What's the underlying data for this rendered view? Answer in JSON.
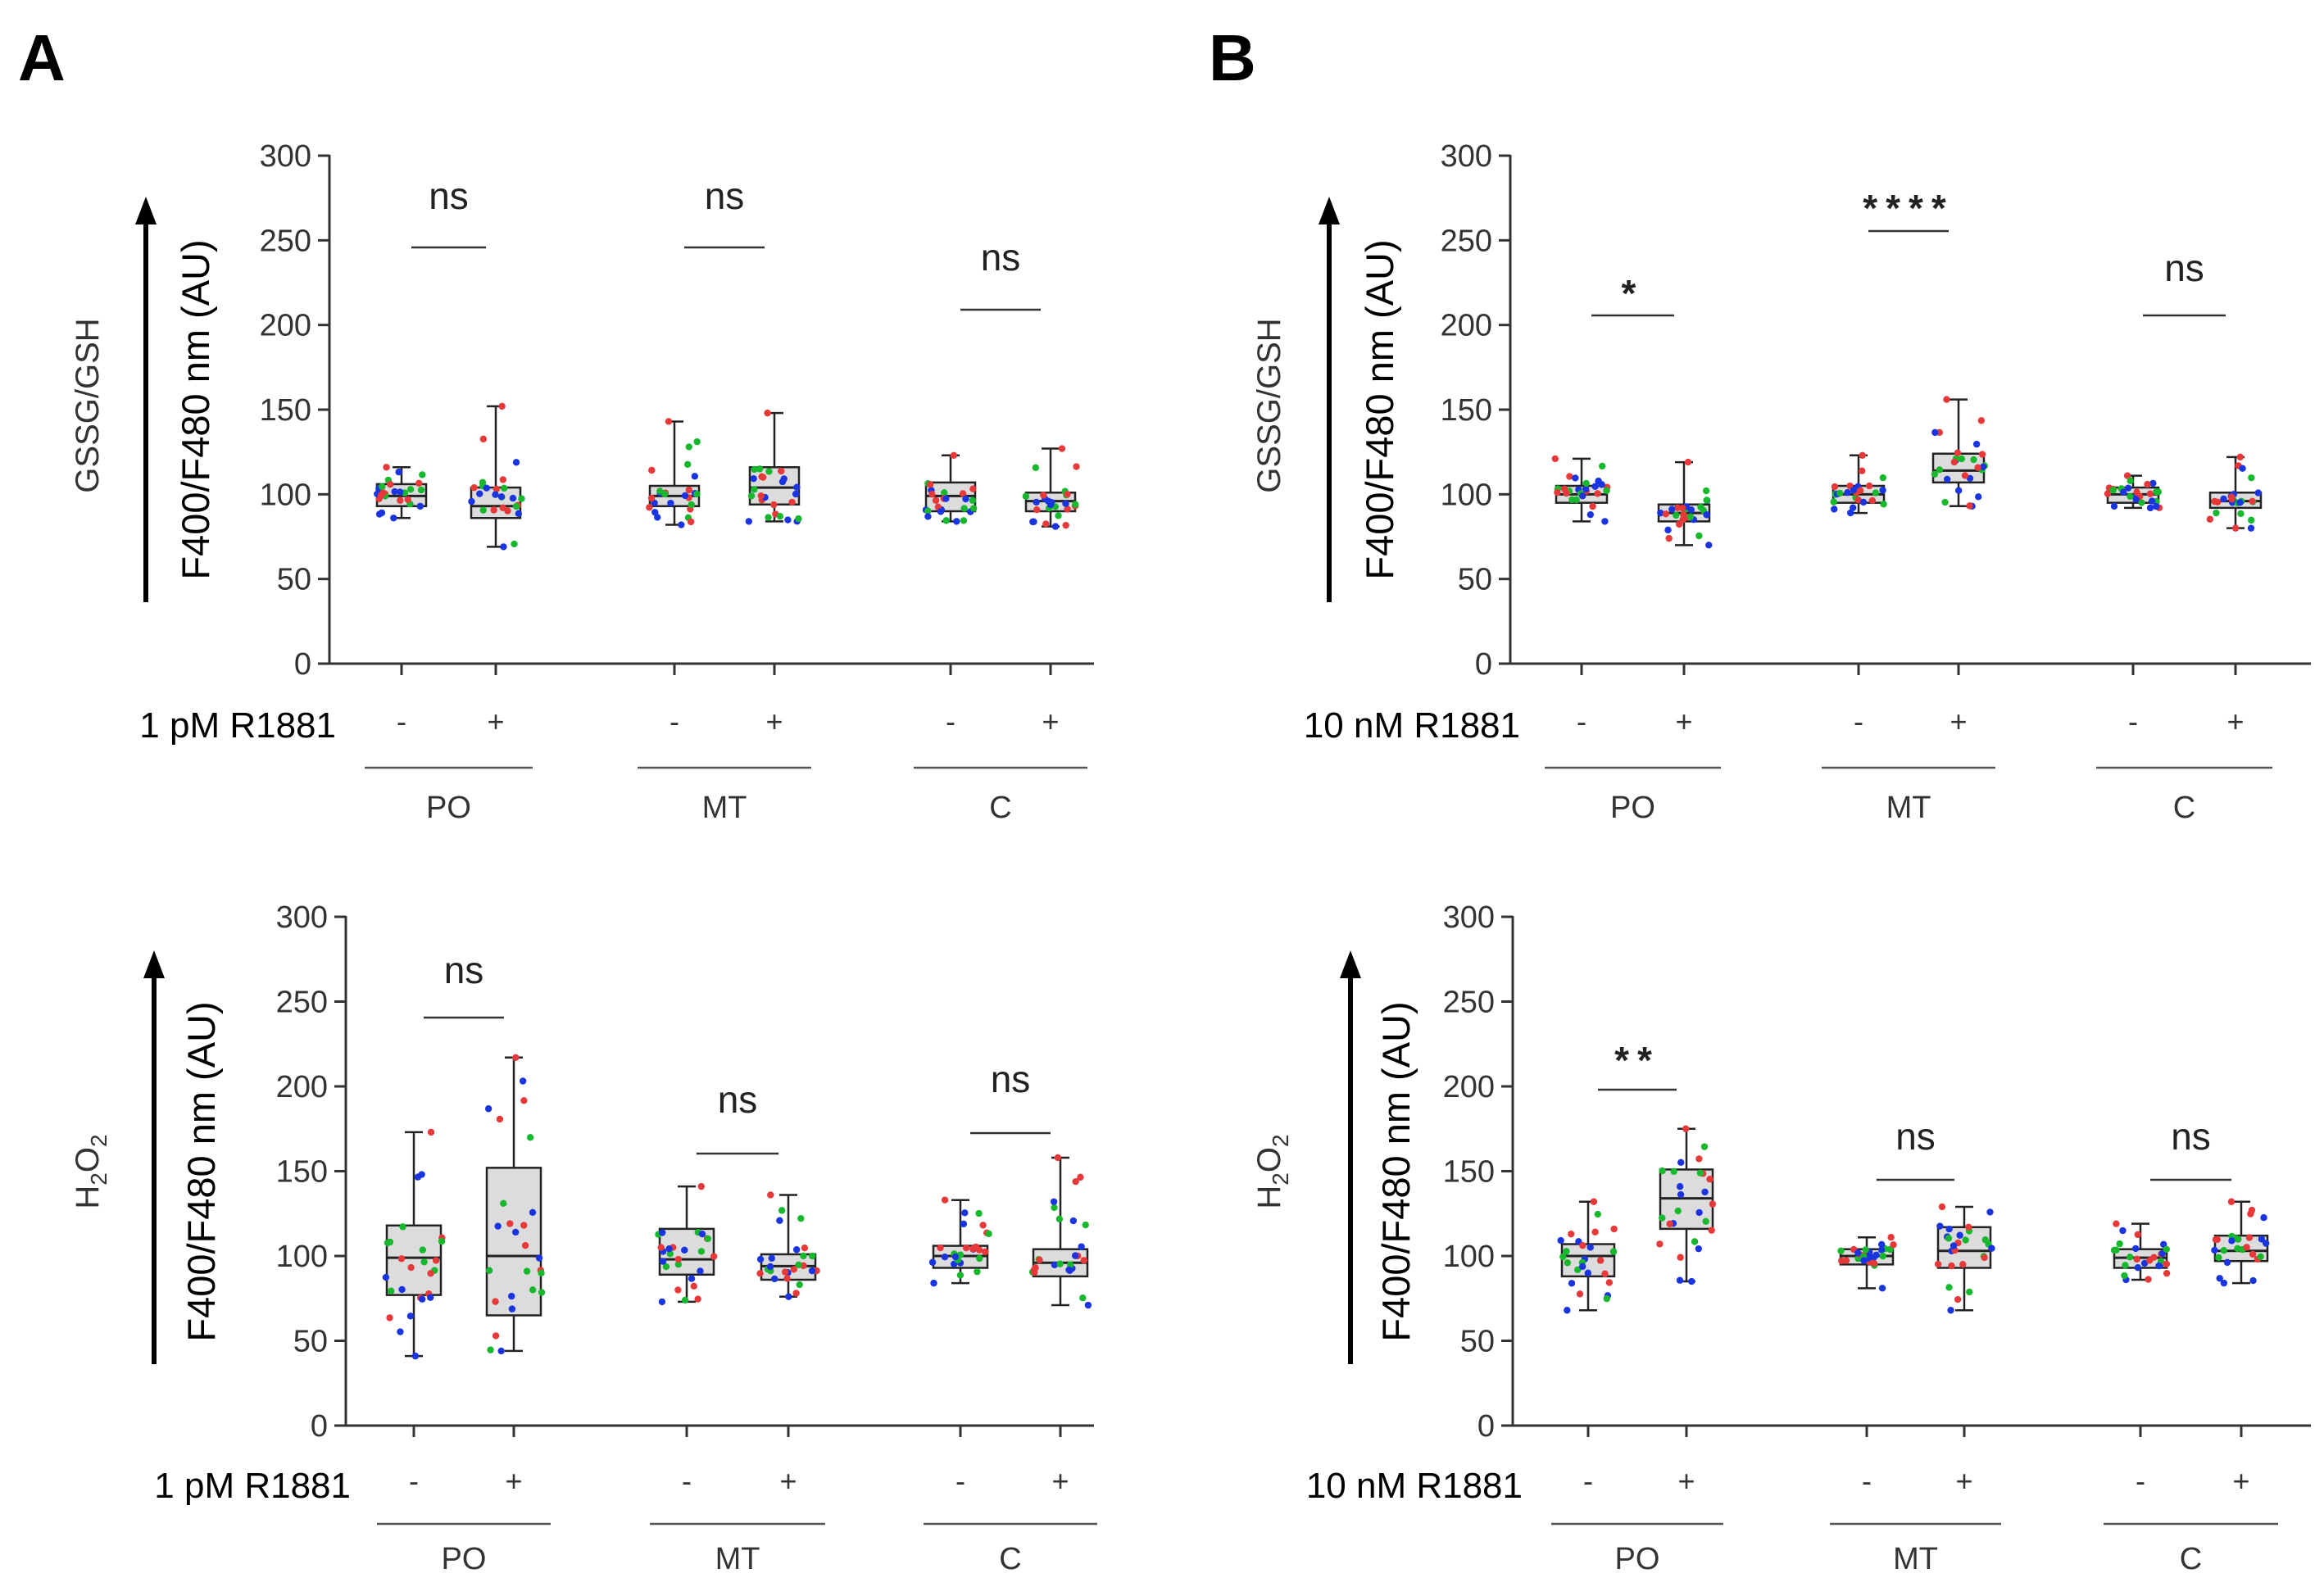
{
  "figure": {
    "panel_letters": [
      "A",
      "B"
    ]
  },
  "chart_data": [
    {
      "id": "A-top",
      "type": "box",
      "panel": "A",
      "ylabel": "F400/F480 nm (AU)",
      "side_label": "GSSG/GSH",
      "ylim": [
        0,
        300
      ],
      "yticks": [
        0,
        50,
        100,
        150,
        200,
        250,
        300
      ],
      "treatment_label": "1 pM R1881",
      "signs": [
        "-",
        "+"
      ],
      "groups": [
        {
          "name": "PO",
          "boxes": [
            {
              "min": 86,
              "q1": 93,
              "median": 99,
              "q3": 106,
              "max": 116
            },
            {
              "min": 69,
              "q1": 86,
              "median": 93,
              "q3": 104,
              "max": 152
            }
          ],
          "sig": "ns"
        },
        {
          "name": "MT",
          "boxes": [
            {
              "min": 82,
              "q1": 93,
              "median": 99,
              "q3": 105,
              "max": 143
            },
            {
              "min": 84,
              "q1": 94,
              "median": 104,
              "q3": 116,
              "max": 148
            }
          ],
          "sig": "ns"
        },
        {
          "name": "C",
          "boxes": [
            {
              "min": 84,
              "q1": 90,
              "median": 99,
              "q3": 107,
              "max": 123
            },
            {
              "min": 81,
              "q1": 90,
              "median": 96,
              "q3": 101,
              "max": 127
            }
          ],
          "sig": "ns"
        }
      ]
    },
    {
      "id": "B-top",
      "type": "box",
      "panel": "B",
      "ylabel": "F400/F480 nm (AU)",
      "side_label": "GSSG/GSH",
      "ylim": [
        0,
        300
      ],
      "yticks": [
        0,
        50,
        100,
        150,
        200,
        250,
        300
      ],
      "treatment_label": "10 nM R1881",
      "signs": [
        "-",
        "+"
      ],
      "groups": [
        {
          "name": "PO",
          "boxes": [
            {
              "min": 84,
              "q1": 95,
              "median": 100,
              "q3": 105,
              "max": 121
            },
            {
              "min": 70,
              "q1": 84,
              "median": 89,
              "q3": 94,
              "max": 119
            }
          ],
          "sig": "*"
        },
        {
          "name": "MT",
          "boxes": [
            {
              "min": 89,
              "q1": 95,
              "median": 100,
              "q3": 105,
              "max": 123
            },
            {
              "min": 93,
              "q1": 107,
              "median": 114,
              "q3": 124,
              "max": 156
            }
          ],
          "sig": "****"
        },
        {
          "name": "C",
          "boxes": [
            {
              "min": 92,
              "q1": 95,
              "median": 100,
              "q3": 104,
              "max": 111
            },
            {
              "min": 80,
              "q1": 92,
              "median": 96,
              "q3": 101,
              "max": 122
            }
          ],
          "sig": "ns"
        }
      ]
    },
    {
      "id": "A-bottom",
      "type": "box",
      "panel": "A",
      "ylabel": "F400/F480 nm (AU)",
      "side_label": "H2O2",
      "side_label_main": "H",
      "side_label_sub1": "2",
      "side_label_mid": "O",
      "side_label_sub2": "2",
      "ylim": [
        0,
        300
      ],
      "yticks": [
        0,
        50,
        100,
        150,
        200,
        250,
        300
      ],
      "treatment_label": "1 pM R1881",
      "signs": [
        "-",
        "+"
      ],
      "groups": [
        {
          "name": "PO",
          "boxes": [
            {
              "min": 41,
              "q1": 77,
              "median": 99,
              "q3": 118,
              "max": 173
            },
            {
              "min": 44,
              "q1": 65,
              "median": 100,
              "q3": 152,
              "max": 217
            }
          ],
          "sig": "ns"
        },
        {
          "name": "MT",
          "boxes": [
            {
              "min": 73,
              "q1": 89,
              "median": 98,
              "q3": 116,
              "max": 141
            },
            {
              "min": 76,
              "q1": 86,
              "median": 94,
              "q3": 101,
              "max": 136
            }
          ],
          "sig": "ns"
        },
        {
          "name": "C",
          "boxes": [
            {
              "min": 84,
              "q1": 93,
              "median": 100,
              "q3": 106,
              "max": 133
            },
            {
              "min": 71,
              "q1": 88,
              "median": 96,
              "q3": 104,
              "max": 158
            }
          ],
          "sig": "ns"
        }
      ]
    },
    {
      "id": "B-bottom",
      "type": "box",
      "panel": "B",
      "ylabel": "F400/F480 nm (AU)",
      "side_label": "H2O2",
      "side_label_main": "H",
      "side_label_sub1": "2",
      "side_label_mid": "O",
      "side_label_sub2": "2",
      "ylim": [
        0,
        300
      ],
      "yticks": [
        0,
        50,
        100,
        150,
        200,
        250,
        300
      ],
      "treatment_label": "10 nM R1881",
      "signs": [
        "-",
        "+"
      ],
      "groups": [
        {
          "name": "PO",
          "boxes": [
            {
              "min": 68,
              "q1": 88,
              "median": 100,
              "q3": 107,
              "max": 132
            },
            {
              "min": 85,
              "q1": 116,
              "median": 134,
              "q3": 151,
              "max": 175
            }
          ],
          "sig": "**"
        },
        {
          "name": "MT",
          "boxes": [
            {
              "min": 81,
              "q1": 95,
              "median": 100,
              "q3": 104,
              "max": 111
            },
            {
              "min": 68,
              "q1": 93,
              "median": 103,
              "q3": 117,
              "max": 129
            }
          ],
          "sig": "ns"
        },
        {
          "name": "C",
          "boxes": [
            {
              "min": 86,
              "q1": 93,
              "median": 99,
              "q3": 104,
              "max": 119
            },
            {
              "min": 84,
              "q1": 97,
              "median": 103,
              "q3": 112,
              "max": 132
            }
          ],
          "sig": "ns"
        }
      ]
    }
  ],
  "colors": {
    "point_colors": [
      "#e8393a",
      "#1a35e0",
      "#17b82e"
    ],
    "box_fill": "#dcdcdc",
    "axis": "#333333"
  }
}
